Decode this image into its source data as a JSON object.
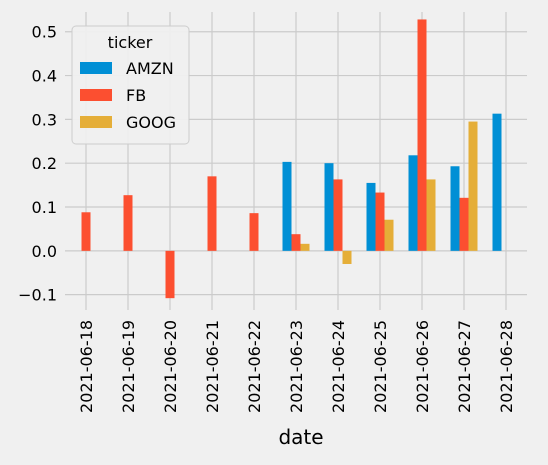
{
  "chart_data": {
    "type": "bar",
    "title": "",
    "xlabel": "date",
    "ylabel": "",
    "categories": [
      "2021-06-18",
      "2021-06-19",
      "2021-06-20",
      "2021-06-21",
      "2021-06-22",
      "2021-06-23",
      "2021-06-24",
      "2021-06-25",
      "2021-06-26",
      "2021-06-27",
      "2021-06-28"
    ],
    "series": [
      {
        "name": "AMZN",
        "color": "#008fd5",
        "values": [
          null,
          null,
          null,
          null,
          null,
          0.203,
          0.2,
          0.155,
          0.218,
          0.193,
          0.313
        ]
      },
      {
        "name": "FB",
        "color": "#fc4f30",
        "values": [
          0.088,
          0.127,
          -0.108,
          0.17,
          0.086,
          0.038,
          0.163,
          0.133,
          0.528,
          0.121,
          null
        ]
      },
      {
        "name": "GOOG",
        "color": "#e5ae38",
        "values": [
          null,
          null,
          null,
          null,
          null,
          0.016,
          -0.03,
          0.071,
          0.163,
          0.295,
          null
        ]
      }
    ],
    "ylim": [
      -0.135,
      0.545
    ],
    "yticks": [
      -0.1,
      0.0,
      0.1,
      0.2,
      0.3,
      0.4,
      0.5
    ],
    "ytick_labels": [
      "−0.1",
      "0.0",
      "0.1",
      "0.2",
      "0.3",
      "0.4",
      "0.5"
    ],
    "grid": true,
    "legend": {
      "title": "ticker",
      "placement": "top-left"
    },
    "colors": {
      "background": "#f0f0f0",
      "grid": "#cbcbcb"
    }
  }
}
